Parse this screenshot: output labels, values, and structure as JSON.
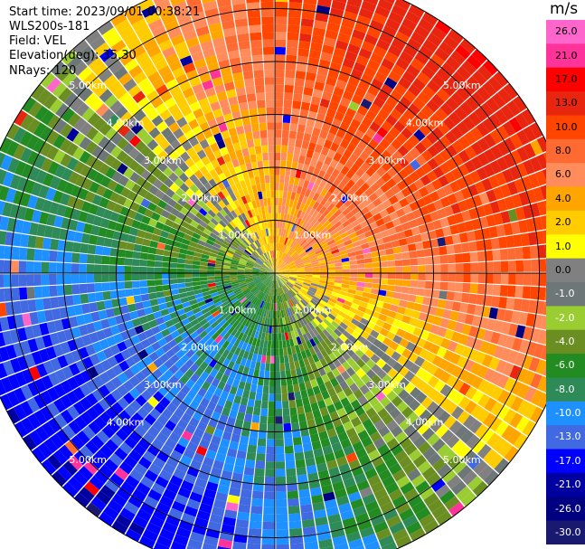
{
  "header": {
    "start_time": "Start time: 2023/09/01 00:38:21",
    "instrument": "WLS200s-181",
    "field": "Field: VEL",
    "elevation": "Elevation(deg): 35.30",
    "nrays": "NRays: 120"
  },
  "chart_data": {
    "type": "heatmap",
    "projection": "polar-ppi",
    "range_rings": [
      {
        "km": 1,
        "label": "1.00km"
      },
      {
        "km": 2,
        "label": "2.00km"
      },
      {
        "km": 3,
        "label": "3.00km"
      },
      {
        "km": 4,
        "label": "4.00km"
      },
      {
        "km": 5,
        "label": "5.00km"
      }
    ],
    "max_range_km": 5.7,
    "n_rays": 120,
    "colorbar": {
      "unit": "m/s",
      "ticks": [
        "26.0",
        "21.0",
        "17.0",
        "13.0",
        "10.0",
        "8.0",
        "6.0",
        "4.0",
        "2.0",
        "1.0",
        "0.0",
        "-1.0",
        "-2.0",
        "-4.0",
        "-6.0",
        "-8.0",
        "-10.0",
        "-13.0",
        "-17.0",
        "-21.0",
        "-26.0",
        "-30.0"
      ],
      "bins": [
        {
          "min": 26,
          "max": 30,
          "color": "#ff66cc"
        },
        {
          "min": 21,
          "max": 26,
          "color": "#ff3399"
        },
        {
          "min": 17,
          "max": 21,
          "color": "#ff0000"
        },
        {
          "min": 13,
          "max": 17,
          "color": "#e8250e"
        },
        {
          "min": 10,
          "max": 13,
          "color": "#ff4500"
        },
        {
          "min": 8,
          "max": 10,
          "color": "#ff6a33"
        },
        {
          "min": 6,
          "max": 8,
          "color": "#ff8c5a"
        },
        {
          "min": 4,
          "max": 6,
          "color": "#ffa500"
        },
        {
          "min": 2,
          "max": 4,
          "color": "#ffcc00"
        },
        {
          "min": 1,
          "max": 2,
          "color": "#ffff00"
        },
        {
          "min": 0,
          "max": 1,
          "color": "#808080"
        },
        {
          "min": -1,
          "max": 0,
          "color": "#6e7777"
        },
        {
          "min": -2,
          "max": -1,
          "color": "#9acd32"
        },
        {
          "min": -4,
          "max": -2,
          "color": "#6b8e23"
        },
        {
          "min": -6,
          "max": -4,
          "color": "#228b22"
        },
        {
          "min": -8,
          "max": -6,
          "color": "#2e8b57"
        },
        {
          "min": -10,
          "max": -8,
          "color": "#1e90ff"
        },
        {
          "min": -13,
          "max": -10,
          "color": "#4169e1"
        },
        {
          "min": -17,
          "max": -13,
          "color": "#0000ff"
        },
        {
          "min": -21,
          "max": -17,
          "color": "#0000a0"
        },
        {
          "min": -26,
          "max": -21,
          "color": "#000080"
        },
        {
          "min": -30,
          "max": -26,
          "color": "#191970"
        }
      ]
    },
    "velocity_pattern": {
      "description_free": true,
      "peak_positive_azimuth_deg": 45,
      "peak_negative_azimuth_deg": 200,
      "amplitude_ms": 13
    }
  }
}
